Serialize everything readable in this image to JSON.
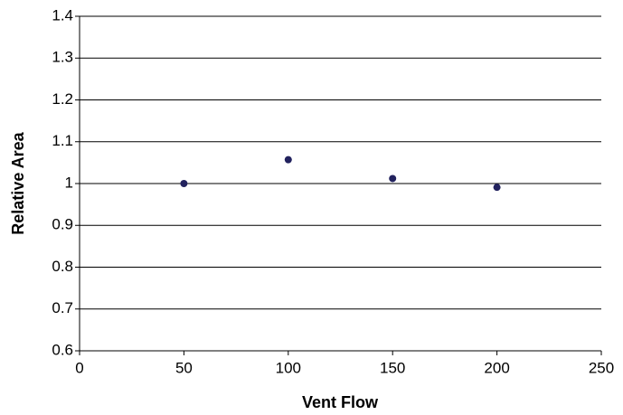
{
  "chart_data": {
    "type": "scatter",
    "x_label": "Vent Flow",
    "y_label": "Relative Area",
    "series": [
      {
        "color": "#22225e",
        "x": [
          50,
          100,
          150,
          200
        ],
        "values": [
          1.0,
          1.057,
          1.012,
          0.991
        ]
      }
    ],
    "xlim": [
      0,
      250
    ],
    "xticks": [
      0,
      50,
      100,
      150,
      200,
      250
    ],
    "ylim": [
      0.6,
      1.4
    ],
    "yticks": [
      0.6,
      0.7,
      0.8,
      0.9,
      1,
      1.1,
      1.2,
      1.3,
      1.4
    ],
    "grid": true
  }
}
